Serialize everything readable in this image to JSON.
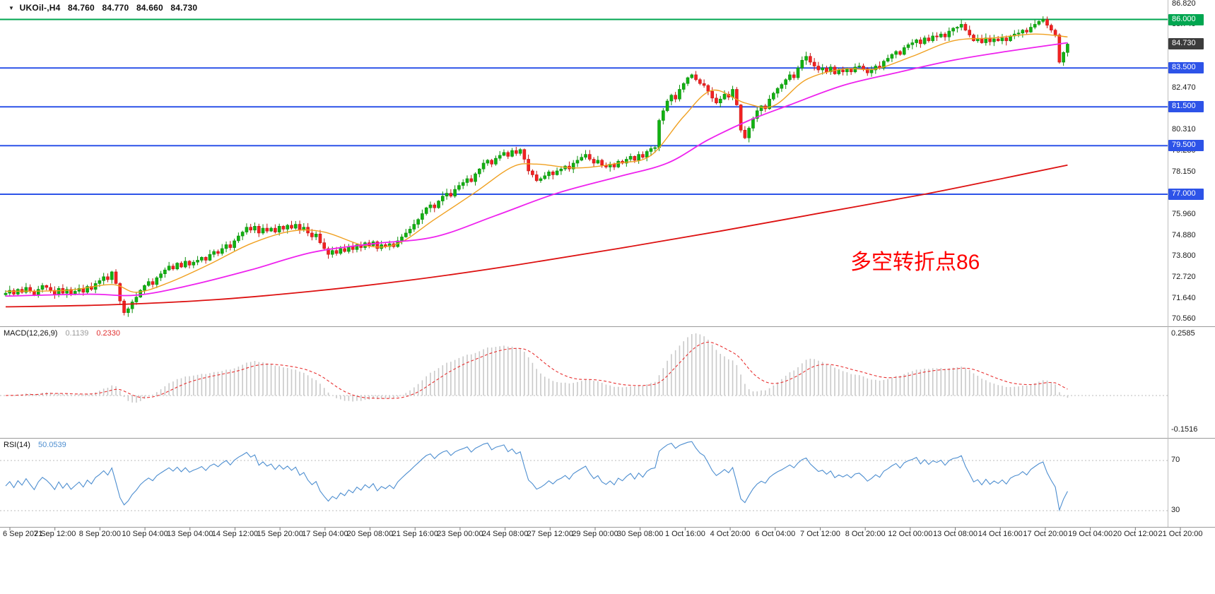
{
  "app": {
    "type": "trading-chart-window",
    "background": "#ffffff"
  },
  "icons": {
    "symbol_marker": "▼"
  },
  "symbol_bar": {
    "symbol_period": "UKOil-,H4",
    "open": "84.760",
    "high": "84.770",
    "low": "84.660",
    "close": "84.730"
  },
  "annotation": {
    "text": "多空转折点86",
    "color": "#ff0000"
  },
  "macd_panel": {
    "name": "MACD(12,26,9)",
    "value_main": "0.1139",
    "value_signal": "0.2330",
    "axis_top": "0.2585",
    "axis_bottom": "-0.1516"
  },
  "rsi_panel": {
    "name": "RSI(14)",
    "value": "50.0539",
    "axis_top": "70",
    "axis_bottom": "30"
  },
  "price_axis": {
    "labels": [
      "86.820",
      "85.740",
      "82.470",
      "80.310",
      "79.230",
      "78.150",
      "75.960",
      "74.880",
      "73.800",
      "72.720",
      "71.640",
      "70.560"
    ],
    "badges": [
      {
        "value": "86.000",
        "price": 86.0,
        "color": "#00a650"
      },
      {
        "value": "84.730",
        "price": 84.73,
        "color": "#3c3c3c"
      },
      {
        "value": "83.500",
        "price": 83.5,
        "color": "#2d53e8"
      },
      {
        "value": "81.500",
        "price": 81.5,
        "color": "#2d53e8"
      },
      {
        "value": "79.500",
        "price": 79.5,
        "color": "#2d53e8"
      },
      {
        "value": "77.000",
        "price": 77.0,
        "color": "#2d53e8"
      }
    ]
  },
  "time_axis": {
    "labels": [
      "6 Sep 2021",
      "7 Sep 12:00",
      "8 Sep 20:00",
      "10 Sep 04:00",
      "13 Sep 04:00",
      "14 Sep 12:00",
      "15 Sep 20:00",
      "17 Sep 04:00",
      "20 Sep 08:00",
      "21 Sep 16:00",
      "23 Sep 00:00",
      "24 Sep 08:00",
      "27 Sep 12:00",
      "29 Sep 00:00",
      "30 Sep 08:00",
      "1 Oct 16:00",
      "4 Oct 20:00",
      "6 Oct 04:00",
      "7 Oct 12:00",
      "8 Oct 20:00",
      "12 Oct 00:00",
      "13 Oct 08:00",
      "14 Oct 16:00",
      "17 Oct 20:00",
      "19 Oct 04:00",
      "20 Oct 12:00",
      "21 Oct 20:00"
    ]
  },
  "colors": {
    "candle_up_fill": "#12b212",
    "candle_up_stroke": "#0a8f0a",
    "candle_down_fill": "#f32222",
    "candle_down_stroke": "#c41414",
    "macd_hist": "#c9c9c9",
    "macd_signal": "#e83030",
    "rsi_line": "#4d8ed0",
    "level_dotted": "#bbbbbb",
    "separator": "#9a9a9a",
    "axis_text": "#1a1a1a"
  },
  "chart_data": {
    "type": "candlestick",
    "title": "UKOil-,H4",
    "bars": 261,
    "ohlc_current": {
      "open": 84.76,
      "high": 84.77,
      "low": 84.66,
      "close": 84.73
    },
    "y_axis": {
      "min": 70.2,
      "max": 86.95,
      "ticks": [
        86.82,
        85.74,
        82.47,
        80.31,
        79.23,
        78.15,
        75.96,
        74.88,
        73.8,
        72.72,
        71.64,
        70.56
      ]
    },
    "x_ticks": [
      "6 Sep 2021",
      "7 Sep 12:00",
      "8 Sep 20:00",
      "10 Sep 04:00",
      "13 Sep 04:00",
      "14 Sep 12:00",
      "15 Sep 20:00",
      "17 Sep 04:00",
      "20 Sep 08:00",
      "21 Sep 16:00",
      "23 Sep 00:00",
      "24 Sep 08:00",
      "27 Sep 12:00",
      "29 Sep 00:00",
      "30 Sep 08:00",
      "1 Oct 16:00",
      "4 Oct 20:00",
      "6 Oct 04:00",
      "7 Oct 12:00",
      "8 Oct 20:00",
      "12 Oct 00:00",
      "13 Oct 08:00",
      "14 Oct 16:00",
      "17 Oct 20:00",
      "19 Oct 04:00",
      "20 Oct 12:00",
      "21 Oct 20:00"
    ],
    "closes": [
      71.9,
      72.05,
      71.85,
      72.1,
      71.95,
      72.2,
      72.0,
      71.8,
      72.1,
      72.3,
      72.2,
      72.05,
      71.85,
      72.15,
      71.9,
      72.1,
      71.85,
      72.0,
      72.15,
      71.95,
      72.25,
      72.1,
      72.4,
      72.55,
      72.75,
      72.6,
      73.0,
      72.4,
      71.5,
      70.9,
      71.1,
      71.45,
      71.7,
      72.05,
      72.3,
      72.5,
      72.35,
      72.7,
      72.9,
      73.1,
      73.3,
      73.15,
      73.45,
      73.25,
      73.55,
      73.35,
      73.5,
      73.6,
      73.75,
      73.6,
      73.9,
      74.05,
      73.95,
      74.2,
      74.4,
      74.25,
      74.6,
      74.85,
      75.05,
      75.3,
      75.15,
      75.35,
      75.0,
      75.25,
      75.1,
      75.25,
      75.05,
      75.35,
      75.2,
      75.4,
      75.25,
      75.45,
      75.15,
      75.3,
      75.0,
      74.8,
      74.95,
      74.5,
      74.2,
      73.9,
      74.1,
      73.95,
      74.2,
      74.05,
      74.3,
      74.15,
      74.4,
      74.25,
      74.5,
      74.35,
      74.55,
      74.2,
      74.4,
      74.3,
      74.45,
      74.3,
      74.6,
      74.8,
      75.0,
      75.2,
      75.45,
      75.7,
      76.0,
      76.3,
      76.45,
      76.3,
      76.65,
      76.9,
      77.05,
      76.9,
      77.25,
      77.45,
      77.6,
      77.8,
      77.65,
      78.05,
      78.3,
      78.6,
      78.75,
      78.55,
      78.85,
      79.0,
      79.15,
      78.95,
      79.25,
      79.1,
      79.3,
      78.8,
      78.2,
      78.0,
      77.7,
      77.8,
      77.95,
      78.15,
      78.0,
      78.2,
      78.3,
      78.45,
      78.3,
      78.6,
      78.75,
      78.9,
      79.05,
      78.8,
      78.6,
      78.75,
      78.5,
      78.4,
      78.55,
      78.4,
      78.7,
      78.6,
      78.8,
      78.95,
      78.75,
      79.05,
      78.9,
      79.2,
      79.35,
      79.4,
      80.8,
      81.3,
      81.8,
      82.1,
      81.9,
      82.4,
      82.7,
      83.0,
      83.15,
      82.9,
      82.7,
      82.6,
      82.3,
      81.95,
      81.7,
      81.9,
      82.15,
      82.0,
      82.4,
      81.6,
      80.3,
      79.9,
      80.4,
      80.9,
      81.3,
      81.55,
      81.4,
      81.9,
      82.2,
      82.45,
      82.65,
      82.9,
      83.15,
      83.0,
      83.5,
      83.9,
      84.1,
      83.8,
      83.6,
      83.4,
      83.5,
      83.3,
      83.55,
      83.2,
      83.4,
      83.3,
      83.45,
      83.3,
      83.55,
      83.6,
      83.45,
      83.25,
      83.4,
      83.6,
      83.5,
      83.85,
      84.0,
      84.2,
      84.35,
      84.2,
      84.55,
      84.7,
      84.8,
      84.95,
      84.75,
      85.05,
      84.9,
      85.15,
      85.1,
      85.25,
      85.1,
      85.4,
      85.55,
      85.6,
      85.75,
      85.45,
      85.2,
      84.9,
      85.0,
      84.8,
      85.05,
      84.85,
      85.0,
      84.9,
      85.05,
      84.9,
      85.15,
      85.25,
      85.3,
      85.45,
      85.35,
      85.6,
      85.75,
      85.9,
      86.0,
      85.7,
      85.45,
      85.2,
      83.8,
      84.3,
      84.73
    ],
    "horizontal_levels": [
      {
        "price": 86.0,
        "color": "#00a650"
      },
      {
        "price": 83.5,
        "color": "#2d53e8"
      },
      {
        "price": 81.5,
        "color": "#2d53e8"
      },
      {
        "price": 79.5,
        "color": "#2d53e8"
      },
      {
        "price": 77.0,
        "color": "#2d53e8"
      }
    ],
    "moving_averages": [
      {
        "name": "fast",
        "color": "#f0a020",
        "width": 1.4,
        "points": [
          [
            0,
            72.0
          ],
          [
            15,
            72.05
          ],
          [
            26,
            72.35
          ],
          [
            32,
            71.95
          ],
          [
            40,
            72.45
          ],
          [
            50,
            73.4
          ],
          [
            60,
            74.45
          ],
          [
            70,
            75.1
          ],
          [
            78,
            75.05
          ],
          [
            88,
            74.35
          ],
          [
            96,
            74.45
          ],
          [
            105,
            75.7
          ],
          [
            115,
            77.1
          ],
          [
            124,
            78.4
          ],
          [
            130,
            78.55
          ],
          [
            140,
            78.35
          ],
          [
            150,
            78.6
          ],
          [
            158,
            79.0
          ],
          [
            166,
            81.0
          ],
          [
            173,
            82.35
          ],
          [
            181,
            81.7
          ],
          [
            188,
            81.55
          ],
          [
            196,
            82.9
          ],
          [
            205,
            83.45
          ],
          [
            213,
            83.45
          ],
          [
            222,
            84.1
          ],
          [
            232,
            84.9
          ],
          [
            242,
            85.05
          ],
          [
            252,
            85.25
          ],
          [
            260,
            85.1
          ]
        ]
      },
      {
        "name": "mid",
        "color": "#ee22ee",
        "width": 1.8,
        "points": [
          [
            0,
            71.75
          ],
          [
            20,
            71.85
          ],
          [
            32,
            71.8
          ],
          [
            45,
            72.3
          ],
          [
            60,
            73.1
          ],
          [
            75,
            74.0
          ],
          [
            90,
            74.45
          ],
          [
            105,
            74.8
          ],
          [
            120,
            75.9
          ],
          [
            135,
            77.05
          ],
          [
            150,
            77.9
          ],
          [
            162,
            78.6
          ],
          [
            172,
            79.8
          ],
          [
            182,
            80.8
          ],
          [
            192,
            81.6
          ],
          [
            205,
            82.6
          ],
          [
            218,
            83.25
          ],
          [
            232,
            83.9
          ],
          [
            245,
            84.35
          ],
          [
            260,
            84.8
          ]
        ]
      },
      {
        "name": "slow",
        "color": "#dd1111",
        "width": 1.8,
        "points": [
          [
            0,
            71.2
          ],
          [
            25,
            71.3
          ],
          [
            50,
            71.55
          ],
          [
            75,
            72.0
          ],
          [
            100,
            72.6
          ],
          [
            125,
            73.35
          ],
          [
            150,
            74.2
          ],
          [
            175,
            75.1
          ],
          [
            200,
            76.05
          ],
          [
            225,
            77.0
          ],
          [
            245,
            77.85
          ],
          [
            260,
            78.5
          ]
        ]
      }
    ],
    "indicators": [
      {
        "type": "macd",
        "params": [
          12,
          26,
          9
        ],
        "last_main": 0.1139,
        "last_signal": 0.233,
        "axis_range": [
          -0.1516,
          0.2585
        ]
      },
      {
        "type": "rsi",
        "period": 14,
        "last": 50.0539,
        "levels": [
          70,
          30
        ]
      }
    ],
    "annotation": {
      "text": "多空转折点86",
      "color": "#ff0000"
    }
  }
}
